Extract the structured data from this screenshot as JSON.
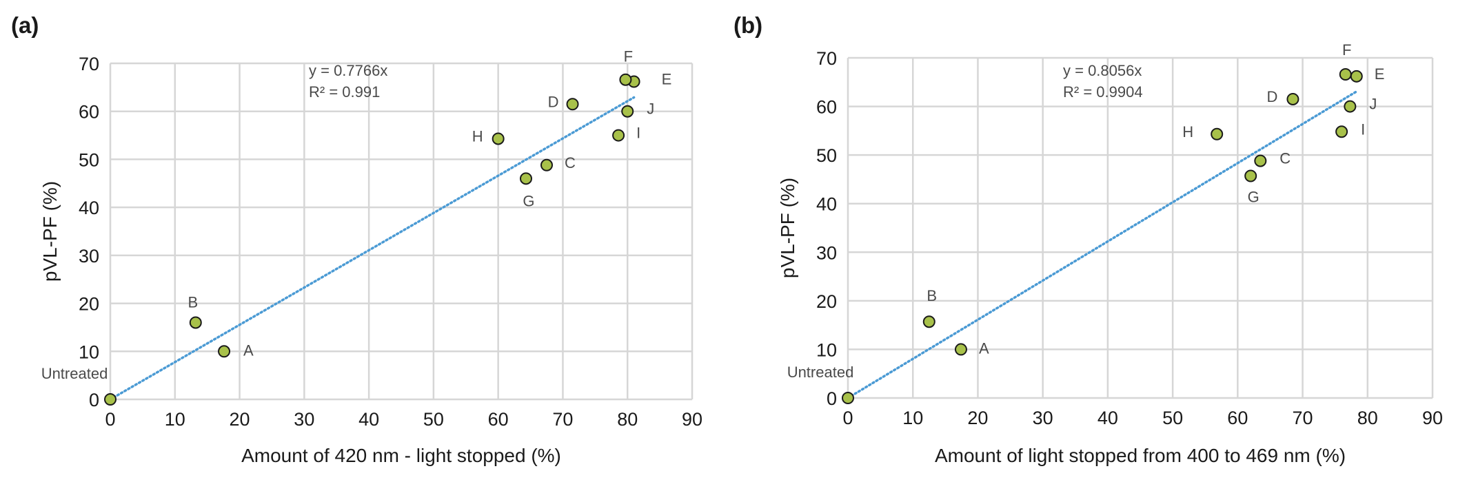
{
  "chart_data": [
    {
      "type": "scatter",
      "panel_label": "(a)",
      "xlabel": "Amount of 420 nm - light stopped (%)",
      "ylabel": "pVL-PF (%)",
      "xlim": [
        0,
        90
      ],
      "ylim": [
        0,
        70
      ],
      "x_ticks": [
        "0",
        "10",
        "20",
        "30",
        "40",
        "50",
        "60",
        "70",
        "80",
        "90"
      ],
      "y_ticks": [
        "0",
        "10",
        "20",
        "30",
        "40",
        "50",
        "60",
        "70"
      ],
      "grid": true,
      "trendline": {
        "type": "linear-through-origin",
        "slope": 0.7766,
        "x_end": 81,
        "color": "#4a9ad4"
      },
      "equation_text": "y = 0.7766x",
      "r2_text": "R² = 0.991",
      "marker_color": "#a8c14a",
      "points": [
        {
          "label": "Untreated",
          "x": 0,
          "y": 0
        },
        {
          "label": "A",
          "x": 17.6,
          "y": 10
        },
        {
          "label": "B",
          "x": 13.2,
          "y": 16
        },
        {
          "label": "C",
          "x": 67.5,
          "y": 48.8
        },
        {
          "label": "D",
          "x": 71.5,
          "y": 61.5
        },
        {
          "label": "E",
          "x": 81,
          "y": 66.2
        },
        {
          "label": "F",
          "x": 79.7,
          "y": 66.6
        },
        {
          "label": "G",
          "x": 64.3,
          "y": 46
        },
        {
          "label": "H",
          "x": 60,
          "y": 54.3
        },
        {
          "label": "I",
          "x": 78.6,
          "y": 55
        },
        {
          "label": "J",
          "x": 80,
          "y": 60
        }
      ]
    },
    {
      "type": "scatter",
      "panel_label": "(b)",
      "xlabel": "Amount of light stopped from 400 to 469 nm (%)",
      "ylabel": "pVL-PF (%)",
      "xlim": [
        0,
        90
      ],
      "ylim": [
        0,
        70
      ],
      "x_ticks": [
        "0",
        "10",
        "20",
        "30",
        "40",
        "50",
        "60",
        "70",
        "80",
        "90"
      ],
      "y_ticks": [
        "0",
        "10",
        "20",
        "30",
        "40",
        "50",
        "60",
        "70"
      ],
      "grid": true,
      "trendline": {
        "type": "linear-through-origin",
        "slope": 0.8056,
        "x_end": 78.5,
        "color": "#4a9ad4"
      },
      "equation_text": "y = 0.8056x",
      "r2_text": "R² = 0.9904",
      "marker_color": "#a8c14a",
      "points": [
        {
          "label": "Untreated",
          "x": 0,
          "y": 0
        },
        {
          "label": "A",
          "x": 17.4,
          "y": 10
        },
        {
          "label": "B",
          "x": 12.5,
          "y": 15.7
        },
        {
          "label": "C",
          "x": 63.5,
          "y": 48.8
        },
        {
          "label": "D",
          "x": 68.5,
          "y": 61.5
        },
        {
          "label": "E",
          "x": 78.3,
          "y": 66.2
        },
        {
          "label": "F",
          "x": 76.6,
          "y": 66.6
        },
        {
          "label": "G",
          "x": 62,
          "y": 45.7
        },
        {
          "label": "H",
          "x": 56.8,
          "y": 54.3
        },
        {
          "label": "I",
          "x": 76,
          "y": 54.8
        },
        {
          "label": "J",
          "x": 77.3,
          "y": 60
        }
      ]
    }
  ]
}
